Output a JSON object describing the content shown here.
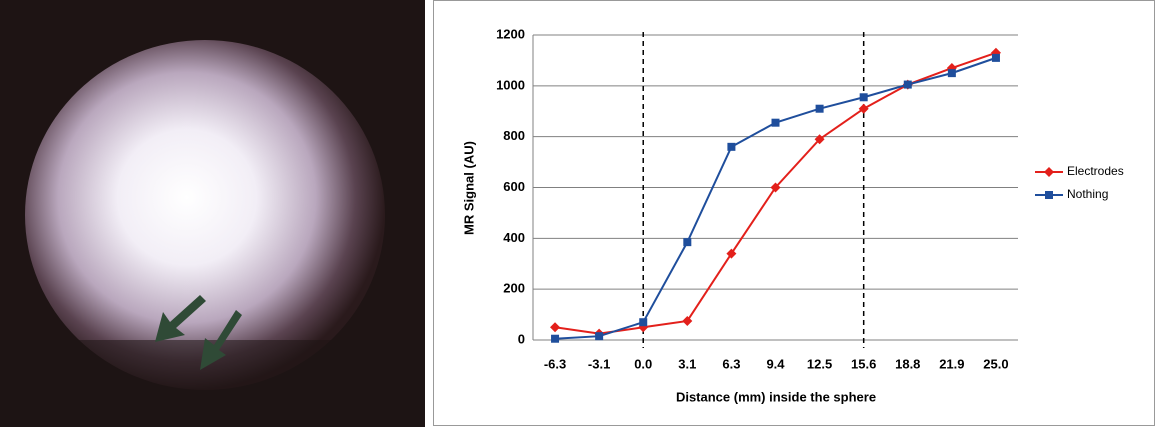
{
  "chart_data": {
    "type": "line",
    "x_label": "Distance (mm) inside the sphere",
    "y_label": "MR Signal (AU)",
    "categories": [
      "-6.3",
      "-3.1",
      "0.0",
      "3.1",
      "6.3",
      "9.4",
      "12.5",
      "15.6",
      "18.8",
      "21.9",
      "25.0"
    ],
    "series": [
      {
        "name": "Electrodes",
        "color": "#e3201b",
        "marker": "diamond",
        "values": [
          50,
          25,
          50,
          75,
          340,
          600,
          790,
          910,
          1005,
          1070,
          1130
        ]
      },
      {
        "name": "Nothing",
        "color": "#1f4e9c",
        "marker": "square",
        "values": [
          5,
          15,
          70,
          385,
          760,
          855,
          910,
          955,
          1005,
          1050,
          1110
        ]
      }
    ],
    "dashed_lines_at": [
      "0.0",
      "15.6"
    ],
    "ylim": [
      0,
      1200
    ],
    "yticks": [
      0,
      200,
      400,
      600,
      800,
      1000,
      1200
    ],
    "grid": true,
    "legend": "right"
  }
}
